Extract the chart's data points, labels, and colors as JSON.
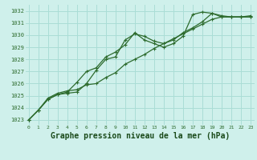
{
  "background_color": "#cff0eb",
  "grid_color": "#aaddd6",
  "line_color": "#2d6b2d",
  "xlabel": "Graphe pression niveau de la mer (hPa)",
  "xlabel_fontsize": 7,
  "xlabel_color": "#1a4a1a",
  "ylabel_ticks": [
    1023,
    1024,
    1025,
    1026,
    1027,
    1028,
    1029,
    1030,
    1031,
    1032
  ],
  "xlabel_ticks": [
    0,
    1,
    2,
    3,
    4,
    5,
    6,
    7,
    8,
    9,
    10,
    11,
    12,
    13,
    14,
    15,
    16,
    17,
    18,
    19,
    20,
    21,
    22,
    23
  ],
  "ylim": [
    1022.6,
    1032.5
  ],
  "xlim": [
    -0.3,
    23.4
  ],
  "series1": [
    1023.0,
    1023.8,
    1024.7,
    1025.1,
    1025.2,
    1025.3,
    1026.0,
    1027.1,
    1028.0,
    1028.2,
    1029.6,
    1030.1,
    1029.9,
    1029.5,
    1029.3,
    1029.6,
    1030.2,
    1030.6,
    1031.1,
    1031.8,
    1031.5,
    1031.5,
    1031.5,
    1031.5
  ],
  "series2": [
    1023.0,
    1023.8,
    1024.8,
    1025.2,
    1025.4,
    1025.5,
    1025.9,
    1026.0,
    1026.5,
    1026.9,
    1027.6,
    1028.0,
    1028.4,
    1028.9,
    1029.3,
    1029.7,
    1030.1,
    1030.5,
    1030.9,
    1031.3,
    1031.5,
    1031.5,
    1031.5,
    1031.6
  ],
  "series3": [
    1023.0,
    1023.8,
    1024.7,
    1025.1,
    1025.3,
    1026.1,
    1027.0,
    1027.3,
    1028.2,
    1028.6,
    1029.2,
    1030.2,
    1029.6,
    1029.3,
    1029.0,
    1029.3,
    1029.9,
    1031.7,
    1031.9,
    1031.8,
    1031.6,
    1031.5,
    1031.5,
    1031.5
  ]
}
